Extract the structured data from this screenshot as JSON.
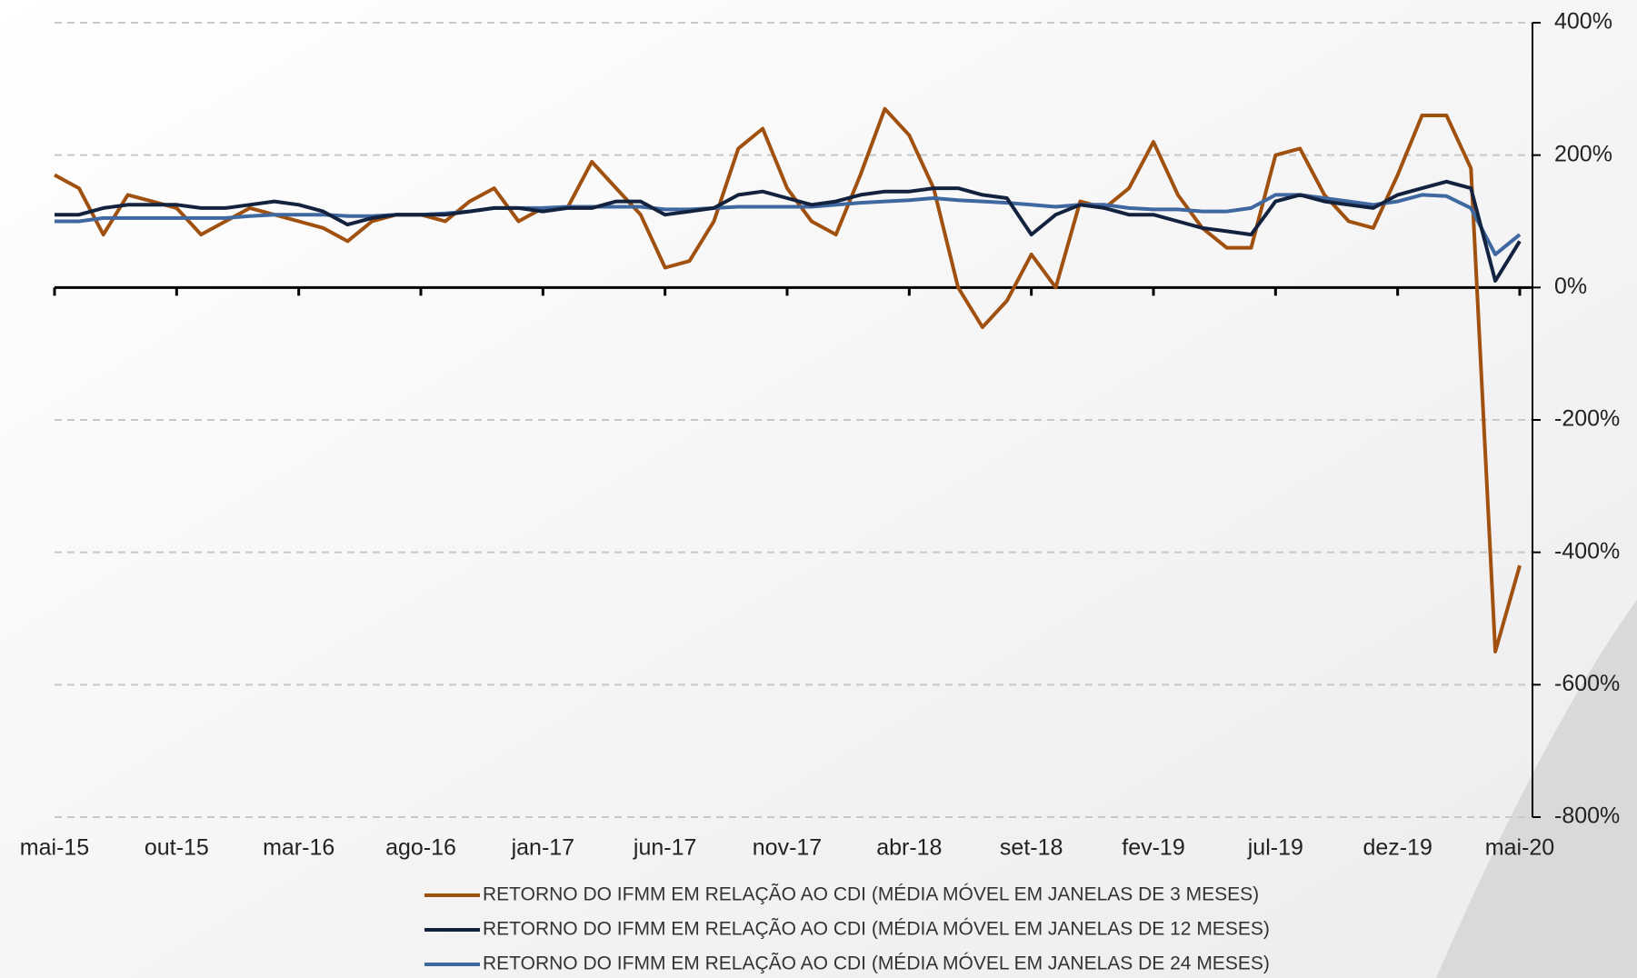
{
  "chart_data": {
    "type": "line",
    "categories": [
      "mai-15",
      null,
      null,
      null,
      null,
      "out-15",
      null,
      null,
      null,
      null,
      "mar-16",
      null,
      null,
      null,
      null,
      "ago-16",
      null,
      null,
      null,
      null,
      "jan-17",
      null,
      null,
      null,
      null,
      "jun-17",
      null,
      null,
      null,
      null,
      "nov-17",
      null,
      null,
      null,
      null,
      "abr-18",
      null,
      null,
      null,
      null,
      "set-18",
      null,
      null,
      null,
      null,
      "fev-19",
      null,
      null,
      null,
      null,
      "jul-19",
      null,
      null,
      null,
      null,
      "dez-19",
      null,
      null,
      null,
      null,
      "mai-20"
    ],
    "series": [
      {
        "name": "RETORNO DO IFMM EM RELAÇÃO AO CDI (MÉDIA MÓVEL EM JANELAS DE 3 MESES)",
        "color": "#a0500f",
        "values": [
          170,
          150,
          80,
          140,
          130,
          120,
          80,
          100,
          120,
          110,
          100,
          90,
          70,
          100,
          110,
          110,
          100,
          130,
          150,
          100,
          120,
          120,
          190,
          150,
          110,
          30,
          40,
          100,
          210,
          240,
          150,
          100,
          80,
          170,
          270,
          230,
          150,
          0,
          -60,
          -20,
          50,
          0,
          130,
          120,
          150,
          220,
          140,
          90,
          60,
          60,
          200,
          210,
          140,
          100,
          90,
          170,
          260,
          260,
          180,
          -550,
          -420
        ]
      },
      {
        "name": "RETORNO DO IFMM EM RELAÇÃO AO CDI (MÉDIA MÓVEL EM JANELAS DE 12 MESES)",
        "color": "#13233f",
        "values": [
          110,
          110,
          120,
          125,
          125,
          125,
          120,
          120,
          125,
          130,
          125,
          115,
          95,
          105,
          110,
          110,
          110,
          115,
          120,
          120,
          115,
          120,
          120,
          130,
          130,
          110,
          115,
          120,
          140,
          145,
          135,
          125,
          130,
          140,
          145,
          145,
          150,
          150,
          140,
          135,
          80,
          110,
          125,
          120,
          110,
          110,
          100,
          90,
          85,
          80,
          130,
          140,
          130,
          125,
          120,
          140,
          150,
          160,
          150,
          10,
          70
        ]
      },
      {
        "name": "RETORNO DO IFMM EM RELAÇÃO AO CDI (MÉDIA MÓVEL EM JANELAS DE 24 MESES)",
        "color": "#3f67a0",
        "values": [
          100,
          100,
          105,
          105,
          105,
          105,
          105,
          105,
          108,
          110,
          110,
          110,
          108,
          108,
          110,
          110,
          112,
          115,
          120,
          120,
          120,
          122,
          122,
          122,
          122,
          118,
          118,
          120,
          122,
          122,
          122,
          122,
          125,
          128,
          130,
          132,
          135,
          132,
          130,
          128,
          125,
          122,
          125,
          125,
          120,
          118,
          118,
          115,
          115,
          120,
          140,
          140,
          135,
          130,
          125,
          130,
          140,
          138,
          120,
          50,
          80
        ]
      }
    ],
    "ylim": [
      -800,
      400
    ],
    "yticks": [
      {
        "value": -800,
        "label": "-800%"
      },
      {
        "value": -600,
        "label": "-600%"
      },
      {
        "value": -400,
        "label": "-400%"
      },
      {
        "value": -200,
        "label": "-200%"
      },
      {
        "value": 0,
        "label": "0%"
      },
      {
        "value": 200,
        "label": "200%"
      },
      {
        "value": 400,
        "label": "400%"
      }
    ],
    "grid": true
  }
}
